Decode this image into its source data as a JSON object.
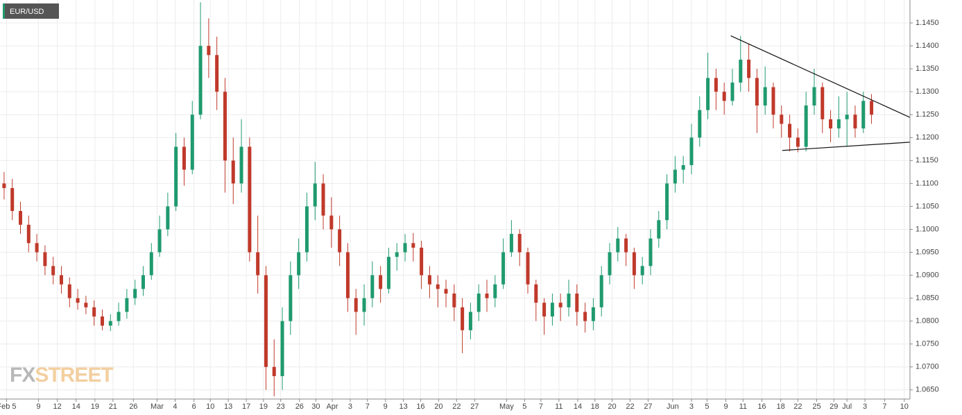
{
  "chart_data": {
    "type": "candlestick",
    "title": "EUR/USD",
    "watermark": [
      "FX",
      "STREET"
    ],
    "up_color": "#1f9a6e",
    "down_color": "#c0392b",
    "grid": true,
    "xlim": [
      0,
      111.2
    ],
    "ylim": [
      1.063,
      1.15
    ],
    "x": [
      0.5,
      1.5,
      2.5,
      3.5,
      4.5,
      5.5,
      6.5,
      7.5,
      8.5,
      9.5,
      10.5,
      11.5,
      12.5,
      13.5,
      14.5,
      15.5,
      16.5,
      17.5,
      18.5,
      19.5,
      20.5,
      21.5,
      22.5,
      23.5,
      24.5,
      25.5,
      26.5,
      27.5,
      28.5,
      29.5,
      30.5,
      31.5,
      32.5,
      33.5,
      34.5,
      35.5,
      36.5,
      37.5,
      38.5,
      39.5,
      40.5,
      41.5,
      42.5,
      43.5,
      44.5,
      45.5,
      46.5,
      47.5,
      48.5,
      49.5,
      50.5,
      51.5,
      52.5,
      53.5,
      54.5,
      55.5,
      56.5,
      57.5,
      58.5,
      59.5,
      60.5,
      61.5,
      62.5,
      63.5,
      64.5,
      65.5,
      66.5,
      67.5,
      68.5,
      69.5,
      70.5,
      71.5,
      72.5,
      73.5,
      74.5,
      75.5,
      76.5,
      77.5,
      78.5,
      79.5,
      80.5,
      81.5,
      82.5,
      83.5,
      84.5,
      85.5,
      86.5,
      87.5,
      88.5,
      89.5,
      90.5,
      91.5,
      92.5,
      93.5,
      94.5,
      95.5,
      96.5,
      97.5,
      98.5,
      99.5,
      100.5,
      101.5,
      102.5,
      103.5,
      104.5,
      105.5,
      106.5
    ],
    "open": [
      1.11,
      1.109,
      1.104,
      1.101,
      1.097,
      1.095,
      1.092,
      1.09,
      1.088,
      1.085,
      1.084,
      1.083,
      1.081,
      1.079,
      1.08,
      1.082,
      1.085,
      1.087,
      1.09,
      1.095,
      1.1,
      1.105,
      1.118,
      1.113,
      1.125,
      1.14,
      1.138,
      1.13,
      1.115,
      1.11,
      1.118,
      1.095,
      1.09,
      1.07,
      1.068,
      1.08,
      1.09,
      1.095,
      1.105,
      1.11,
      1.103,
      1.1,
      1.095,
      1.085,
      1.082,
      1.085,
      1.09,
      1.087,
      1.094,
      1.095,
      1.097,
      1.096,
      1.09,
      1.088,
      1.087,
      1.086,
      1.083,
      1.078,
      1.082,
      1.086,
      1.085,
      1.088,
      1.095,
      1.099,
      1.095,
      1.088,
      1.084,
      1.081,
      1.084,
      1.083,
      1.086,
      1.082,
      1.08,
      1.083,
      1.09,
      1.095,
      1.098,
      1.095,
      1.09,
      1.092,
      1.098,
      1.102,
      1.11,
      1.113,
      1.114,
      1.12,
      1.126,
      1.133,
      1.13,
      1.128,
      1.132,
      1.137,
      1.133,
      1.127,
      1.131,
      1.125,
      1.123,
      1.12,
      1.118,
      1.127,
      1.131,
      1.124,
      1.122,
      1.124,
      1.125,
      1.122,
      1.128
    ],
    "high": [
      1.1125,
      1.111,
      1.106,
      1.103,
      1.099,
      1.0965,
      1.094,
      1.092,
      1.0895,
      1.087,
      1.0855,
      1.0845,
      1.0825,
      1.0815,
      1.084,
      1.087,
      1.089,
      1.092,
      1.097,
      1.103,
      1.108,
      1.121,
      1.12,
      1.128,
      1.1495,
      1.146,
      1.142,
      1.133,
      1.12,
      1.124,
      1.12,
      1.103,
      1.092,
      1.076,
      1.083,
      1.093,
      1.098,
      1.108,
      1.1147,
      1.112,
      1.107,
      1.103,
      1.097,
      1.087,
      1.088,
      1.093,
      1.092,
      1.096,
      1.097,
      1.099,
      1.0992,
      1.0975,
      1.092,
      1.09,
      1.089,
      1.088,
      1.085,
      1.084,
      1.088,
      1.089,
      1.09,
      1.098,
      1.102,
      1.1,
      1.096,
      1.089,
      1.085,
      1.086,
      1.086,
      1.089,
      1.088,
      1.084,
      1.085,
      1.092,
      1.097,
      1.1005,
      1.099,
      1.096,
      1.094,
      1.1,
      1.104,
      1.112,
      1.116,
      1.116,
      1.123,
      1.129,
      1.1385,
      1.135,
      1.132,
      1.135,
      1.1422,
      1.1405,
      1.135,
      1.1355,
      1.132,
      1.127,
      1.125,
      1.122,
      1.13,
      1.135,
      1.132,
      1.126,
      1.129,
      1.13,
      1.127,
      1.13,
      1.1295
    ],
    "low": [
      1.1065,
      1.102,
      1.099,
      1.095,
      1.093,
      1.09,
      1.088,
      1.086,
      1.083,
      1.0825,
      1.0815,
      1.079,
      1.078,
      1.0778,
      1.079,
      1.0805,
      1.0835,
      1.0855,
      1.089,
      1.094,
      1.0985,
      1.104,
      1.1095,
      1.112,
      1.124,
      1.133,
      1.126,
      1.108,
      1.1055,
      1.108,
      1.093,
      1.086,
      1.065,
      1.0636,
      1.065,
      1.077,
      1.087,
      1.093,
      1.102,
      1.1,
      1.096,
      1.092,
      1.082,
      1.077,
      1.079,
      1.083,
      1.084,
      1.086,
      1.091,
      1.093,
      1.093,
      1.087,
      1.085,
      1.083,
      1.083,
      1.08,
      1.073,
      1.076,
      1.08,
      1.082,
      1.083,
      1.087,
      1.094,
      1.092,
      1.086,
      1.08,
      1.077,
      1.079,
      1.08,
      1.081,
      1.079,
      1.0775,
      1.078,
      1.081,
      1.088,
      1.093,
      1.092,
      1.087,
      1.088,
      1.09,
      1.096,
      1.1,
      1.108,
      1.11,
      1.112,
      1.118,
      1.124,
      1.126,
      1.125,
      1.127,
      1.13,
      1.13,
      1.121,
      1.125,
      1.122,
      1.12,
      1.117,
      1.1168,
      1.117,
      1.125,
      1.121,
      1.119,
      1.12,
      1.118,
      1.12,
      1.121,
      1.123
    ],
    "close": [
      1.109,
      1.104,
      1.101,
      1.097,
      1.095,
      1.092,
      1.09,
      1.088,
      1.085,
      1.084,
      1.083,
      1.081,
      1.079,
      1.08,
      1.082,
      1.085,
      1.087,
      1.09,
      1.095,
      1.1,
      1.105,
      1.118,
      1.113,
      1.125,
      1.14,
      1.138,
      1.13,
      1.115,
      1.11,
      1.118,
      1.095,
      1.09,
      1.07,
      1.068,
      1.08,
      1.09,
      1.095,
      1.105,
      1.11,
      1.103,
      1.1,
      1.095,
      1.085,
      1.082,
      1.085,
      1.09,
      1.087,
      1.094,
      1.095,
      1.097,
      1.096,
      1.09,
      1.088,
      1.087,
      1.086,
      1.083,
      1.078,
      1.082,
      1.086,
      1.085,
      1.088,
      1.095,
      1.099,
      1.095,
      1.088,
      1.084,
      1.081,
      1.084,
      1.083,
      1.086,
      1.082,
      1.08,
      1.083,
      1.09,
      1.095,
      1.098,
      1.095,
      1.09,
      1.092,
      1.098,
      1.102,
      1.11,
      1.113,
      1.114,
      1.12,
      1.126,
      1.133,
      1.13,
      1.128,
      1.132,
      1.137,
      1.133,
      1.127,
      1.131,
      1.125,
      1.123,
      1.12,
      1.118,
      1.127,
      1.131,
      1.124,
      1.122,
      1.124,
      1.125,
      1.122,
      1.128,
      1.125
    ],
    "trendlines": [
      {
        "x": [
          89.3,
          111.2
        ],
        "y": [
          1.1422,
          1.1244
        ]
      },
      {
        "x": [
          95.6,
          111.2
        ],
        "y": [
          1.1172,
          1.119
        ]
      }
    ],
    "xticks": [
      {
        "value": 0.8,
        "label": "Feb 5"
      },
      {
        "value": 4.7,
        "label": "9"
      },
      {
        "value": 7.0,
        "label": "12"
      },
      {
        "value": 9.3,
        "label": "14"
      },
      {
        "value": 11.6,
        "label": "19"
      },
      {
        "value": 13.8,
        "label": "21"
      },
      {
        "value": 16.3,
        "label": "26"
      },
      {
        "value": 19.2,
        "label": "Mar"
      },
      {
        "value": 21.4,
        "label": "4"
      },
      {
        "value": 23.7,
        "label": "6"
      },
      {
        "value": 25.7,
        "label": "10"
      },
      {
        "value": 27.9,
        "label": "13"
      },
      {
        "value": 30.1,
        "label": "17"
      },
      {
        "value": 32.2,
        "label": "19"
      },
      {
        "value": 34.3,
        "label": "23"
      },
      {
        "value": 36.6,
        "label": "26"
      },
      {
        "value": 38.6,
        "label": "30"
      },
      {
        "value": 40.6,
        "label": "Apr"
      },
      {
        "value": 42.8,
        "label": "3"
      },
      {
        "value": 44.9,
        "label": "7"
      },
      {
        "value": 47.1,
        "label": "9"
      },
      {
        "value": 49.3,
        "label": "13"
      },
      {
        "value": 51.4,
        "label": "16"
      },
      {
        "value": 53.6,
        "label": "20"
      },
      {
        "value": 55.8,
        "label": "22"
      },
      {
        "value": 58.0,
        "label": "27"
      },
      {
        "value": 61.9,
        "label": "May"
      },
      {
        "value": 64.1,
        "label": "5"
      },
      {
        "value": 66.1,
        "label": "7"
      },
      {
        "value": 68.3,
        "label": "11"
      },
      {
        "value": 70.6,
        "label": "14"
      },
      {
        "value": 72.7,
        "label": "18"
      },
      {
        "value": 74.8,
        "label": "20"
      },
      {
        "value": 77.0,
        "label": "22"
      },
      {
        "value": 79.2,
        "label": "27"
      },
      {
        "value": 82.2,
        "label": "Jun"
      },
      {
        "value": 84.5,
        "label": "3"
      },
      {
        "value": 86.4,
        "label": "5"
      },
      {
        "value": 88.7,
        "label": "9"
      },
      {
        "value": 90.8,
        "label": "11"
      },
      {
        "value": 93.1,
        "label": "16"
      },
      {
        "value": 95.4,
        "label": "18"
      },
      {
        "value": 97.5,
        "label": "22"
      },
      {
        "value": 99.8,
        "label": "25"
      },
      {
        "value": 101.9,
        "label": "29"
      },
      {
        "value": 103.5,
        "label": "Jul"
      },
      {
        "value": 105.7,
        "label": "3"
      },
      {
        "value": 108.1,
        "label": "7"
      },
      {
        "value": 110.5,
        "label": "10"
      }
    ],
    "yticks": [
      {
        "value": 1.065,
        "label": "1.0650"
      },
      {
        "value": 1.07,
        "label": "1.0700"
      },
      {
        "value": 1.075,
        "label": "1.0750"
      },
      {
        "value": 1.08,
        "label": "1.0800"
      },
      {
        "value": 1.085,
        "label": "1.0850"
      },
      {
        "value": 1.09,
        "label": "1.0900"
      },
      {
        "value": 1.095,
        "label": "1.0950"
      },
      {
        "value": 1.1,
        "label": "1.1000"
      },
      {
        "value": 1.105,
        "label": "1.1050"
      },
      {
        "value": 1.11,
        "label": "1.1100"
      },
      {
        "value": 1.115,
        "label": "1.1150"
      },
      {
        "value": 1.12,
        "label": "1.1200"
      },
      {
        "value": 1.125,
        "label": "1.1250"
      },
      {
        "value": 1.13,
        "label": "1.1300"
      },
      {
        "value": 1.135,
        "label": "1.1350"
      },
      {
        "value": 1.14,
        "label": "1.1400"
      },
      {
        "value": 1.145,
        "label": "1.1450"
      }
    ]
  }
}
